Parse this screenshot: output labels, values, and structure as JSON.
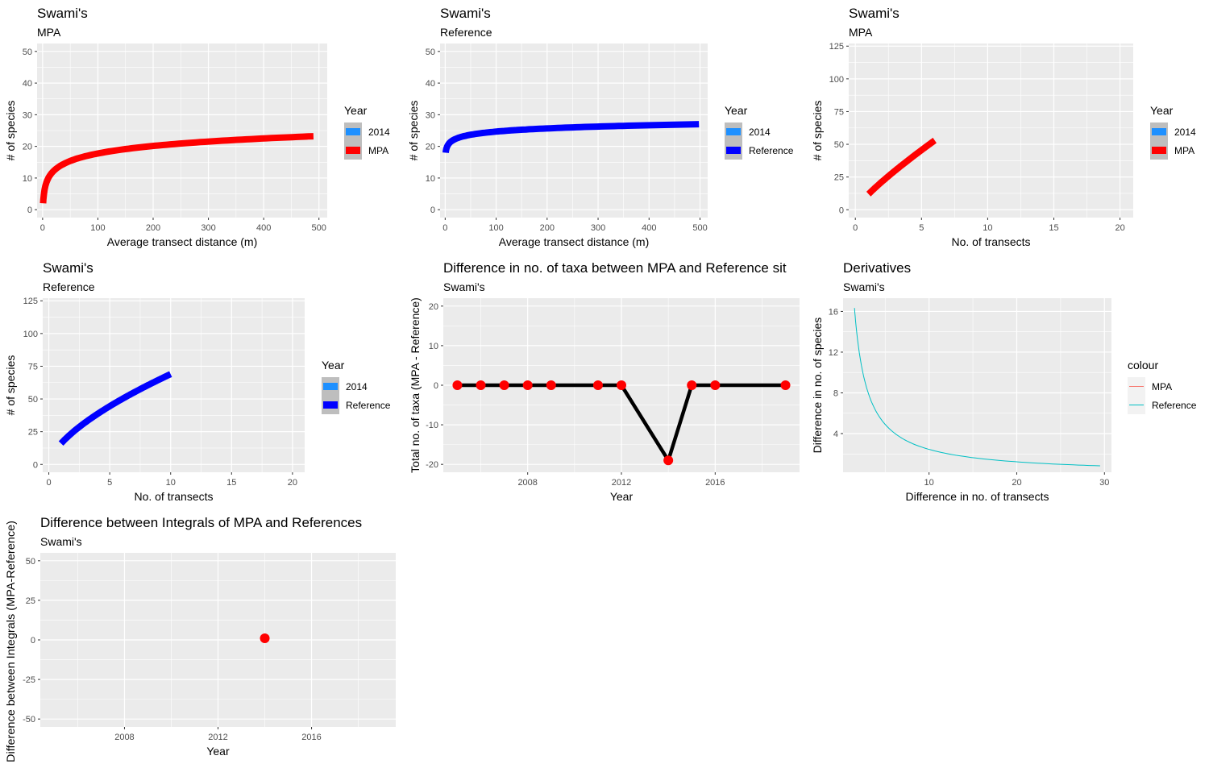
{
  "chart_data": [
    {
      "type": "line",
      "title": "Swami's",
      "subtitle": "MPA",
      "xlabel": "Average transect distance (m)",
      "ylabel": "# of species",
      "xlim": [
        -10,
        515
      ],
      "ylim": [
        -2.5,
        52.5
      ],
      "xticks": [
        "0",
        "100",
        "200",
        "300",
        "400",
        "500"
      ],
      "yticks": [
        "0",
        "10",
        "20",
        "30",
        "40",
        "50"
      ],
      "curve": {
        "kind": "log",
        "x0": 1,
        "x1": 490,
        "y0": 2,
        "y1": 23.2
      },
      "line_color": "#ff0000",
      "legend": {
        "title": "Year",
        "items": [
          {
            "label": "2014",
            "color": "#1e90ff"
          },
          {
            "label": "MPA",
            "color": "#ff0000"
          }
        ]
      }
    },
    {
      "type": "line",
      "title": "Swami's",
      "subtitle": "Reference",
      "xlabel": "Average transect distance (m)",
      "ylabel": "# of species",
      "xlim": [
        -10,
        515
      ],
      "ylim": [
        -2.5,
        52.5
      ],
      "xticks": [
        "0",
        "100",
        "200",
        "300",
        "400",
        "500"
      ],
      "yticks": [
        "0",
        "10",
        "20",
        "30",
        "40",
        "50"
      ],
      "curve": {
        "kind": "log",
        "x0": 1,
        "x1": 498,
        "y0": 18,
        "y1": 27
      },
      "line_color": "#0000ff",
      "legend": {
        "title": "Year",
        "items": [
          {
            "label": "2014",
            "color": "#1e90ff"
          },
          {
            "label": "Reference",
            "color": "#0000ff"
          }
        ]
      }
    },
    {
      "type": "line",
      "title": "Swami's",
      "subtitle": "MPA",
      "xlabel": "No. of transects",
      "ylabel": "# of species",
      "xlim": [
        -0.5,
        21
      ],
      "ylim": [
        -6,
        127
      ],
      "xticks": [
        "0",
        "5",
        "10",
        "15",
        "20"
      ],
      "yticks": [
        "0",
        "25",
        "50",
        "75",
        "100",
        "125"
      ],
      "curve": {
        "kind": "pow",
        "x0": 1,
        "x1": 6,
        "y0": 12,
        "y1": 53,
        "p": 0.8
      },
      "line_color": "#ff0000",
      "legend": {
        "title": "Year",
        "items": [
          {
            "label": "2014",
            "color": "#1e90ff"
          },
          {
            "label": "MPA",
            "color": "#ff0000"
          }
        ]
      }
    },
    {
      "type": "line",
      "title": "Swami's",
      "subtitle": "Reference",
      "xlabel": "No. of transects",
      "ylabel": "# of species",
      "xlim": [
        -0.5,
        21
      ],
      "ylim": [
        -6,
        127
      ],
      "xticks": [
        "0",
        "5",
        "10",
        "15",
        "20"
      ],
      "yticks": [
        "0",
        "25",
        "50",
        "75",
        "100",
        "125"
      ],
      "curve": {
        "kind": "pow",
        "x0": 1,
        "x1": 10,
        "y0": 16,
        "y1": 69,
        "p": 0.62
      },
      "line_color": "#0000ff",
      "legend": {
        "title": "Year",
        "items": [
          {
            "label": "2014",
            "color": "#1e90ff"
          },
          {
            "label": "Reference",
            "color": "#0000ff"
          }
        ]
      }
    },
    {
      "type": "line",
      "title": "Difference in no. of taxa between MPA and Reference sit",
      "subtitle": "Swami's",
      "xlabel": "Year",
      "ylabel": "Total no. of taxa (MPA - Reference)",
      "xlim": [
        2004.4,
        2019.6
      ],
      "ylim": [
        -22,
        22
      ],
      "xticks": [
        "2008",
        "2012",
        "2016"
      ],
      "yticks": [
        "-20",
        "-10",
        "0",
        "10",
        "20"
      ],
      "x": [
        2005,
        2006,
        2007,
        2008,
        2009,
        2011,
        2012,
        2014,
        2015,
        2016,
        2019
      ],
      "y": [
        0,
        0,
        0,
        0,
        0,
        0,
        0,
        -19,
        0,
        0,
        0
      ],
      "line_color": "#000000",
      "point_color": "#ff0000"
    },
    {
      "type": "line",
      "title": "Derivatives",
      "subtitle": "Swami's",
      "xlabel": "Difference in no. of transects",
      "ylabel": "Difference in no. of species",
      "xlim": [
        0.2,
        30.8
      ],
      "ylim": [
        0.2,
        17.3
      ],
      "xticks": [
        "10",
        "20",
        "30"
      ],
      "yticks": [
        "4",
        "8",
        "12",
        "16"
      ],
      "curve": {
        "kind": "inv",
        "x0": 1.5,
        "x1": 29.5,
        "a": 24.5,
        "b": 0.0
      },
      "series": [
        {
          "name": "MPA",
          "color": "#f8766d"
        },
        {
          "name": "Reference",
          "color": "#00bfc4"
        }
      ],
      "line_color": "#00bfc4",
      "legend": {
        "title": "colour",
        "items": [
          {
            "label": "MPA",
            "color": "#f8766d"
          },
          {
            "label": "Reference",
            "color": "#00bfc4"
          }
        ]
      }
    },
    {
      "type": "scatter",
      "title": "Difference between Integrals of MPA and References",
      "subtitle": "Swami's",
      "xlabel": "Year",
      "ylabel": "Difference between Integrals (MPA-Reference)",
      "xlim": [
        2004.4,
        2019.6
      ],
      "ylim": [
        -55,
        55
      ],
      "xticks": [
        "2008",
        "2012",
        "2016"
      ],
      "yticks": [
        "-50",
        "-25",
        "0",
        "25",
        "50"
      ],
      "x": [
        2014
      ],
      "y": [
        1
      ],
      "point_color": "#ff0000"
    }
  ]
}
